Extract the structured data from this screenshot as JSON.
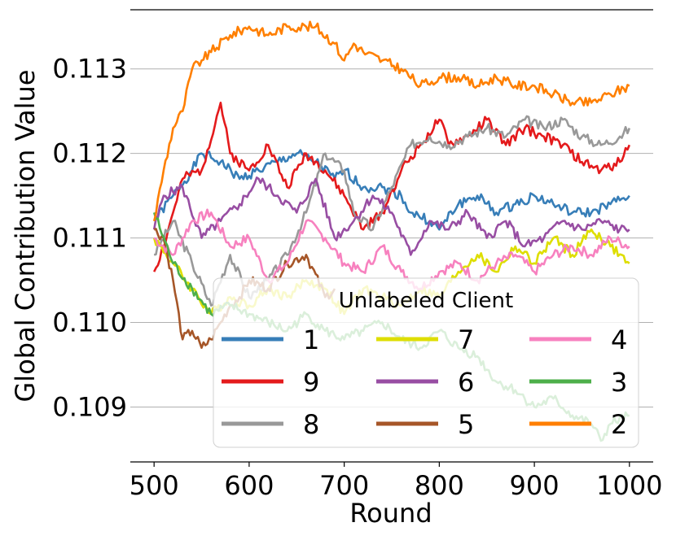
{
  "chart_data": {
    "type": "line",
    "xlabel": "Round",
    "ylabel": "Global Contribution Value",
    "xlim": [
      475,
      1025
    ],
    "ylim": [
      0.10835,
      0.1137
    ],
    "xticks": [
      500,
      600,
      700,
      800,
      900,
      1000
    ],
    "xtick_labels": [
      "500",
      "600",
      "700",
      "800",
      "900",
      "1000"
    ],
    "yticks": [
      0.109,
      0.11,
      0.111,
      0.112,
      0.113
    ],
    "ytick_labels": [
      "0.109",
      "0.110",
      "0.111",
      "0.112",
      "0.113"
    ],
    "grid": "horizontal",
    "legend": {
      "title": "Unlabeled Client",
      "placement": "lower-right",
      "columns": 3,
      "order": [
        "1",
        "9",
        "8",
        "7",
        "6",
        "5",
        "4",
        "3",
        "2"
      ]
    },
    "series": [
      {
        "name": "1",
        "color": "#377eb8",
        "x": [
          500,
          520,
          540,
          550,
          570,
          590,
          610,
          630,
          650,
          670,
          690,
          700,
          720,
          740,
          760,
          770,
          790,
          800,
          820,
          840,
          860,
          880,
          900,
          920,
          940,
          960,
          980,
          1000
        ],
        "y": [
          0.1112,
          0.1115,
          0.1118,
          0.112,
          0.1119,
          0.1117,
          0.1118,
          0.1119,
          0.112,
          0.1119,
          0.1117,
          0.1118,
          0.1116,
          0.1116,
          0.1115,
          0.1113,
          0.1112,
          0.1111,
          0.1114,
          0.1115,
          0.1113,
          0.1114,
          0.1115,
          0.1114,
          0.1113,
          0.1113,
          0.1114,
          0.1115
        ]
      },
      {
        "name": "9",
        "color": "#e41a1c",
        "x": [
          500,
          510,
          520,
          530,
          550,
          570,
          580,
          600,
          620,
          640,
          660,
          680,
          700,
          720,
          740,
          760,
          780,
          800,
          810,
          830,
          850,
          870,
          890,
          910,
          930,
          950,
          970,
          990,
          1000
        ],
        "y": [
          0.1106,
          0.1109,
          0.1113,
          0.1117,
          0.1118,
          0.1126,
          0.112,
          0.1118,
          0.1121,
          0.1116,
          0.112,
          0.1118,
          0.1115,
          0.1111,
          0.1113,
          0.1118,
          0.1121,
          0.1124,
          0.1121,
          0.1122,
          0.1124,
          0.1121,
          0.1123,
          0.1122,
          0.1121,
          0.1119,
          0.1118,
          0.1119,
          0.1121
        ]
      },
      {
        "name": "8",
        "color": "#999999",
        "x": [
          500,
          520,
          540,
          560,
          580,
          600,
          620,
          640,
          660,
          680,
          700,
          710,
          730,
          750,
          770,
          790,
          810,
          830,
          850,
          870,
          890,
          910,
          930,
          950,
          970,
          990,
          1000
        ],
        "y": [
          0.1108,
          0.1112,
          0.1107,
          0.1102,
          0.1108,
          0.1103,
          0.1105,
          0.1108,
          0.1113,
          0.112,
          0.1118,
          0.1113,
          0.1111,
          0.1116,
          0.1121,
          0.1122,
          0.1121,
          0.1122,
          0.1123,
          0.1122,
          0.1124,
          0.1123,
          0.1124,
          0.1122,
          0.1121,
          0.1122,
          0.1123
        ]
      },
      {
        "name": "7",
        "color": "#dede00",
        "x": [
          500,
          520,
          540,
          560,
          580,
          600,
          620,
          640,
          660,
          680,
          700,
          720,
          740,
          760,
          780,
          800,
          820,
          840,
          860,
          880,
          900,
          920,
          940,
          960,
          980,
          1000
        ],
        "y": [
          0.111,
          0.1107,
          0.1104,
          0.1101,
          0.1103,
          0.1102,
          0.1104,
          0.1103,
          0.1105,
          0.1104,
          0.1101,
          0.1104,
          0.1103,
          0.1102,
          0.1104,
          0.1103,
          0.1106,
          0.1108,
          0.1106,
          0.1109,
          0.1107,
          0.111,
          0.1108,
          0.1111,
          0.1109,
          0.1107
        ]
      },
      {
        "name": "6",
        "color": "#984ea3",
        "x": [
          500,
          510,
          530,
          550,
          570,
          590,
          610,
          630,
          650,
          670,
          690,
          710,
          730,
          750,
          770,
          790,
          810,
          830,
          850,
          870,
          890,
          910,
          930,
          950,
          970,
          990,
          1000
        ],
        "y": [
          0.1111,
          0.1115,
          0.1116,
          0.111,
          0.1112,
          0.1114,
          0.1117,
          0.1115,
          0.1113,
          0.1117,
          0.111,
          0.1112,
          0.1115,
          0.1113,
          0.1108,
          0.1112,
          0.1111,
          0.1113,
          0.111,
          0.1112,
          0.1109,
          0.111,
          0.1112,
          0.1111,
          0.1112,
          0.1111,
          0.1111
        ]
      },
      {
        "name": "5",
        "color": "#a65628",
        "x": [
          500,
          510,
          520,
          530,
          540,
          550,
          560,
          570,
          580,
          590,
          600,
          620,
          640,
          660,
          680,
          690
        ],
        "y": [
          0.1111,
          0.111,
          0.1105,
          0.1098,
          0.1099,
          0.1097,
          0.1098,
          0.11,
          0.1102,
          0.1103,
          0.1105,
          0.1104,
          0.1107,
          0.1108,
          0.1103,
          0.1104
        ]
      },
      {
        "name": "4",
        "color": "#f781bf",
        "x": [
          500,
          520,
          540,
          560,
          580,
          600,
          620,
          640,
          660,
          680,
          700,
          720,
          740,
          760,
          780,
          800,
          820,
          840,
          860,
          880,
          900,
          920,
          940,
          960,
          980,
          1000
        ],
        "y": [
          0.111,
          0.1108,
          0.1112,
          0.1113,
          0.1109,
          0.111,
          0.1105,
          0.1107,
          0.1112,
          0.111,
          0.1107,
          0.1106,
          0.1109,
          0.1106,
          0.1104,
          0.1106,
          0.1107,
          0.1105,
          0.1107,
          0.1108,
          0.1106,
          0.1108,
          0.1109,
          0.1108,
          0.111,
          0.1109
        ]
      },
      {
        "name": "3",
        "color": "#4daf4a",
        "x": [
          500,
          520,
          540,
          560,
          580,
          600,
          620,
          640,
          660,
          680,
          700,
          720,
          740,
          760,
          780,
          800,
          820,
          840,
          860,
          880,
          900,
          920,
          940,
          960,
          970,
          980,
          1000
        ],
        "y": [
          0.1113,
          0.1107,
          0.1104,
          0.1101,
          0.1102,
          0.1101,
          0.11,
          0.1099,
          0.1101,
          0.1099,
          0.1098,
          0.1099,
          0.11,
          0.1098,
          0.1097,
          0.1099,
          0.1097,
          0.1096,
          0.1093,
          0.1092,
          0.109,
          0.1091,
          0.1089,
          0.1088,
          0.1086,
          0.1088,
          0.1089
        ]
      },
      {
        "name": "2",
        "color": "#ff7f00",
        "x": [
          500,
          510,
          520,
          530,
          540,
          550,
          560,
          580,
          600,
          620,
          640,
          660,
          670,
          690,
          700,
          710,
          720,
          740,
          760,
          780,
          800,
          820,
          840,
          860,
          880,
          900,
          920,
          940,
          960,
          980,
          1000
        ],
        "y": [
          0.1112,
          0.1118,
          0.1123,
          0.1125,
          0.113,
          0.1131,
          0.1132,
          0.1134,
          0.1135,
          0.1134,
          0.1135,
          0.1135,
          0.1135,
          0.1133,
          0.1131,
          0.1133,
          0.1132,
          0.1131,
          0.113,
          0.1128,
          0.1129,
          0.1129,
          0.1128,
          0.1129,
          0.1128,
          0.1128,
          0.1127,
          0.1126,
          0.1126,
          0.1127,
          0.1128
        ]
      }
    ]
  }
}
